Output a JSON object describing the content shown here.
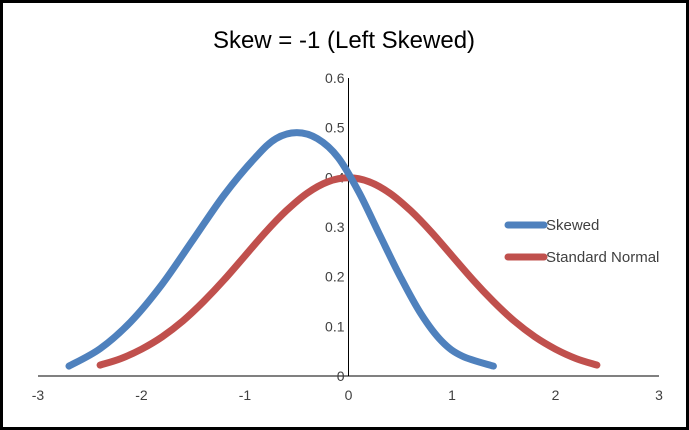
{
  "chart_data": {
    "type": "line",
    "title": "Skew = -1 (Left Skewed)",
    "xlabel": "",
    "ylabel": "",
    "xlim": [
      -3,
      3
    ],
    "ylim": [
      0,
      0.6
    ],
    "x_ticks": [
      -3,
      -2,
      -1,
      0,
      1,
      2,
      3
    ],
    "y_ticks": [
      0,
      0.1,
      0.2,
      0.3,
      0.4,
      0.5,
      0.6
    ],
    "x_tick_labels": [
      "-3",
      "-2",
      "-1",
      "0",
      "1",
      "2",
      "3"
    ],
    "y_tick_labels": [
      "0",
      "0.1",
      "0.2",
      "0.3",
      "0.4",
      "0.5",
      "0.6"
    ],
    "grid": false,
    "legend_position": "right",
    "series": [
      {
        "name": "Skewed",
        "color": "#4f81bd",
        "points": [
          [
            -2.7,
            0.02
          ],
          [
            -2.4,
            0.055
          ],
          [
            -2.1,
            0.11
          ],
          [
            -1.8,
            0.185
          ],
          [
            -1.5,
            0.275
          ],
          [
            -1.2,
            0.365
          ],
          [
            -0.9,
            0.44
          ],
          [
            -0.7,
            0.478
          ],
          [
            -0.5,
            0.49
          ],
          [
            -0.3,
            0.478
          ],
          [
            -0.1,
            0.44
          ],
          [
            0.1,
            0.37
          ],
          [
            0.3,
            0.285
          ],
          [
            0.5,
            0.2
          ],
          [
            0.7,
            0.125
          ],
          [
            0.9,
            0.07
          ],
          [
            1.1,
            0.04
          ],
          [
            1.4,
            0.02
          ]
        ]
      },
      {
        "name": "Standard Normal",
        "color": "#c0504d",
        "points": [
          [
            -2.4,
            0.022
          ],
          [
            -2.2,
            0.035
          ],
          [
            -2.0,
            0.054
          ],
          [
            -1.8,
            0.079
          ],
          [
            -1.6,
            0.111
          ],
          [
            -1.4,
            0.15
          ],
          [
            -1.2,
            0.194
          ],
          [
            -1.0,
            0.242
          ],
          [
            -0.8,
            0.29
          ],
          [
            -0.6,
            0.333
          ],
          [
            -0.4,
            0.368
          ],
          [
            -0.2,
            0.391
          ],
          [
            0.0,
            0.399
          ],
          [
            0.2,
            0.391
          ],
          [
            0.4,
            0.368
          ],
          [
            0.6,
            0.333
          ],
          [
            0.8,
            0.29
          ],
          [
            1.0,
            0.242
          ],
          [
            1.2,
            0.194
          ],
          [
            1.4,
            0.15
          ],
          [
            1.6,
            0.111
          ],
          [
            1.8,
            0.079
          ],
          [
            2.0,
            0.054
          ],
          [
            2.2,
            0.035
          ],
          [
            2.4,
            0.022
          ]
        ]
      }
    ]
  }
}
